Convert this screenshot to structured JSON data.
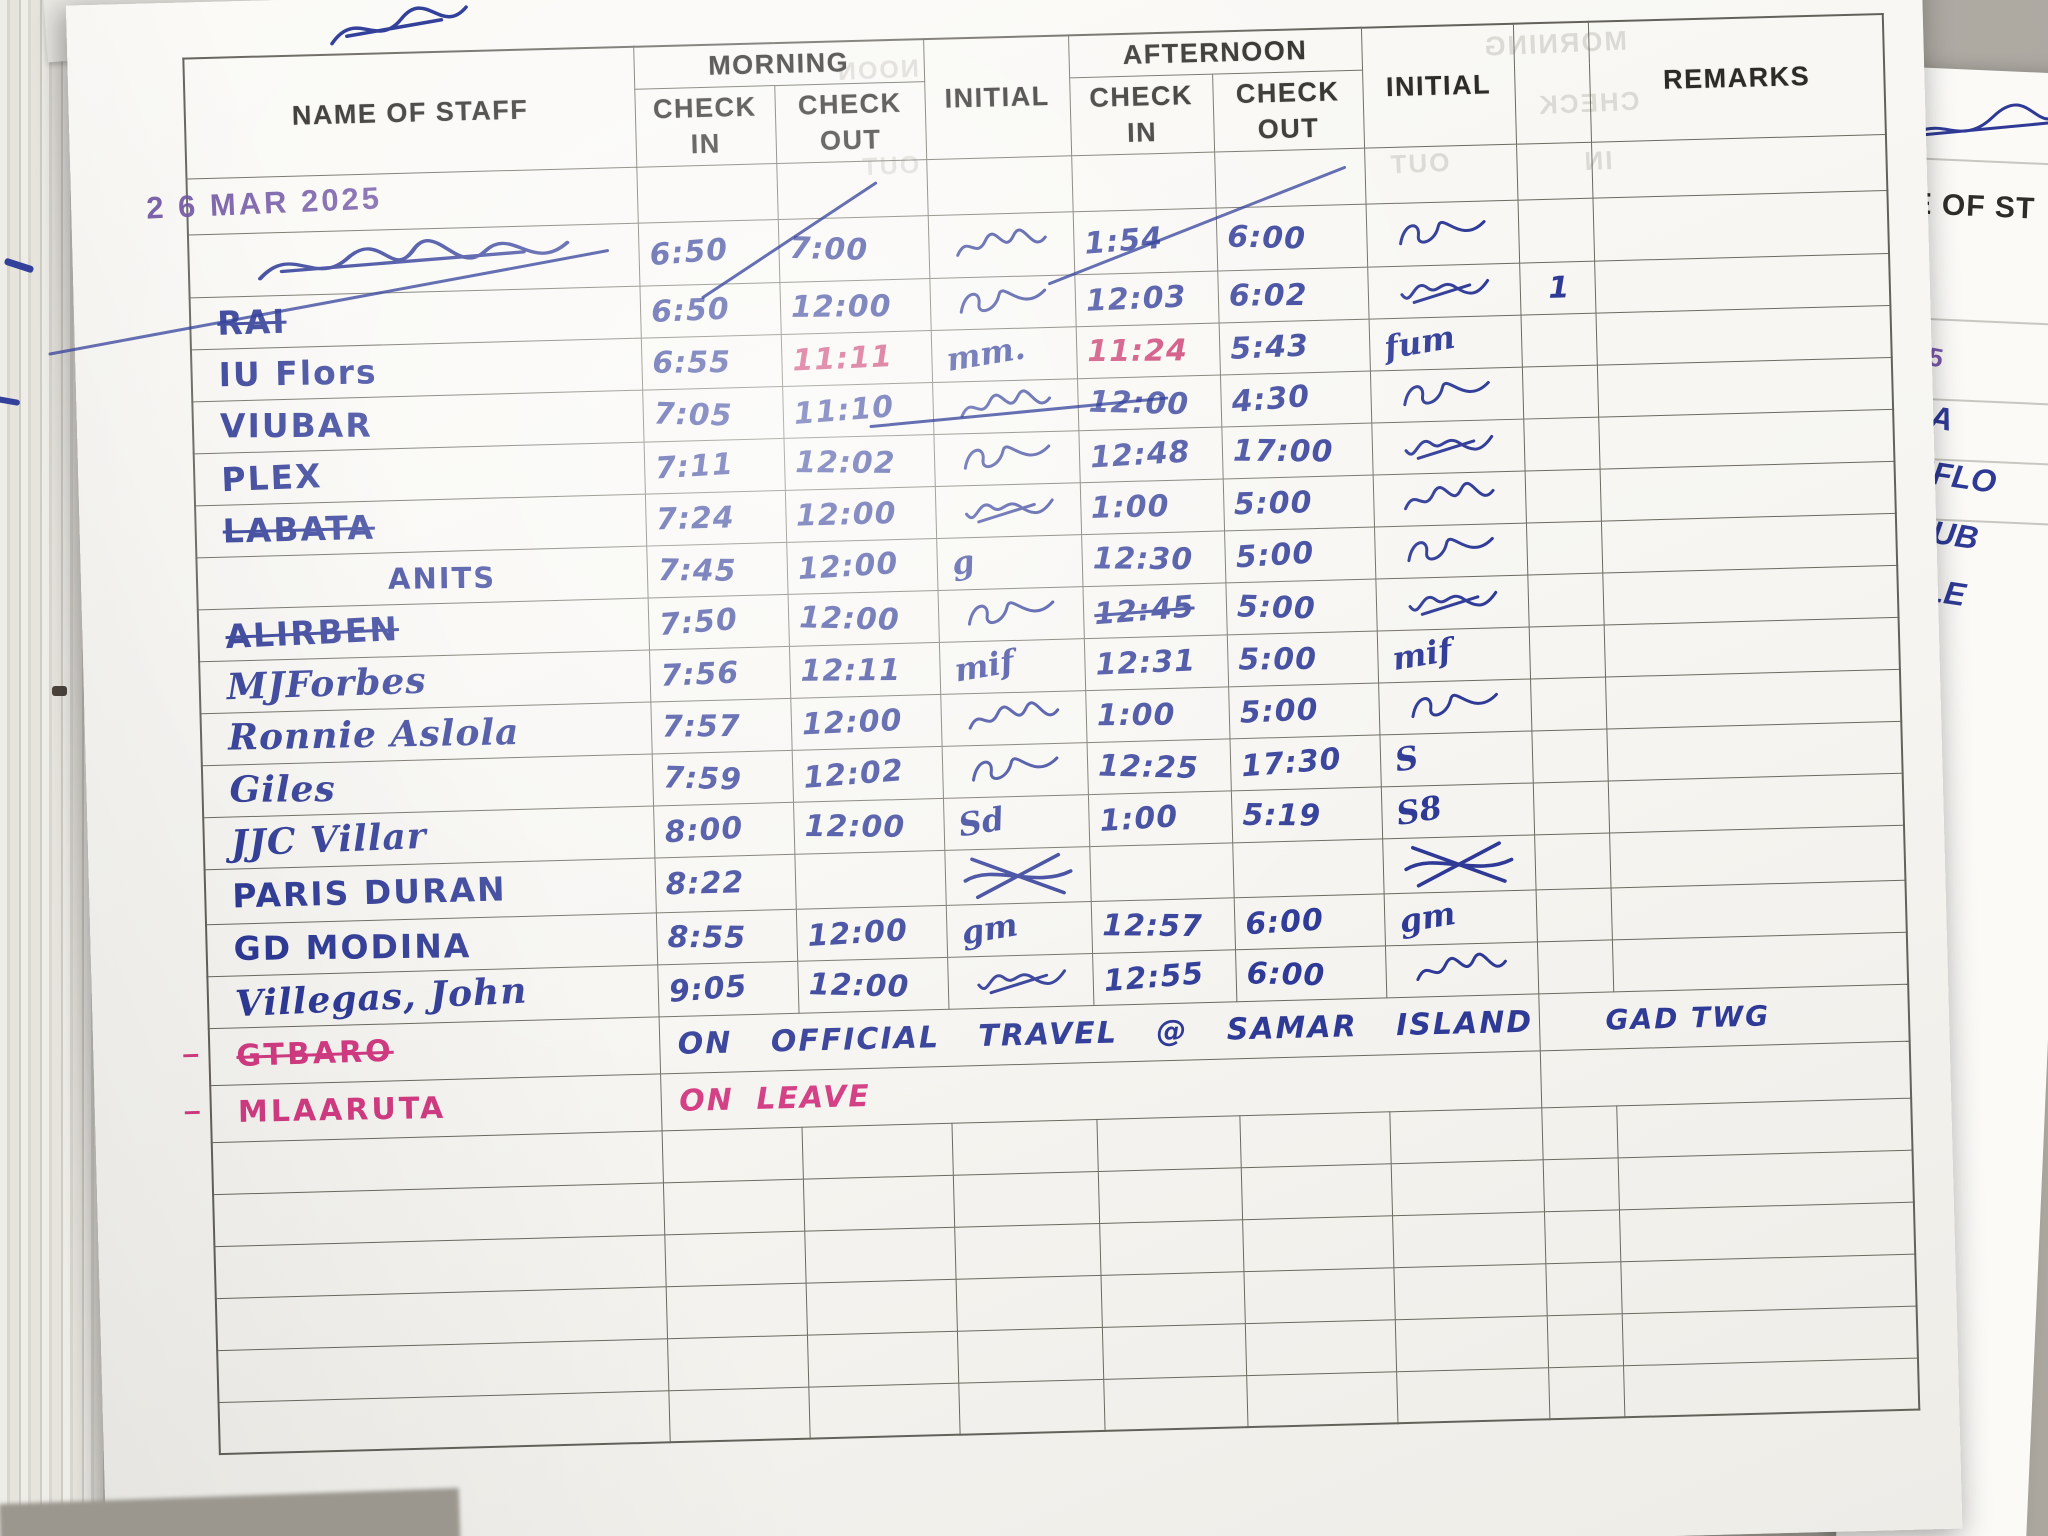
{
  "photo": {
    "date_stamp": "2 6 MAR 2025"
  },
  "ink": {
    "blue": "#2e3a96",
    "red": "#c9356b",
    "pink": "#d23b82",
    "stamp_purple": "#6b4fa1"
  },
  "table": {
    "headers": {
      "name": "NAME OF STAFF",
      "morning": "MORNING",
      "afternoon": "AFTERNOON",
      "check": "CHECK",
      "in": "IN",
      "out": "OUT",
      "initial": "INITIAL",
      "remarks": "REMARKS"
    },
    "rows": [
      {
        "sig_name": true,
        "big": true,
        "m_in": "6:50",
        "m_out": "7:00",
        "init1": "~",
        "a_in": "1:54",
        "a_out": "6:00",
        "init2": "~"
      },
      {
        "name": "RAI",
        "strike": true,
        "m_in": "6:50",
        "m_out": "12:00",
        "init1": "~",
        "a_in": "12:03",
        "a_out": "6:02",
        "init2": "~",
        "narrow": "1"
      },
      {
        "name": "IU Flors",
        "m_in": "6:55",
        "m_out": "11:11",
        "m_out_red": true,
        "init1": "mm.",
        "a_in": "11:24",
        "a_in_red": true,
        "a_out": "5:43",
        "init2": "fum"
      },
      {
        "name": "VIUBAR",
        "m_in": "7:05",
        "m_out": "11:10",
        "init1": "~",
        "a_in": "12:00",
        "a_out": "4:30",
        "init2": "~"
      },
      {
        "name": "PLEX",
        "m_in": "7:11",
        "m_out": "12:02",
        "init1": "~",
        "a_in": "12:48",
        "a_out": "17:00",
        "init2": "~"
      },
      {
        "name": "LABATA",
        "strike": true,
        "m_in": "7:24",
        "m_out": "12:00",
        "init1": "~",
        "a_in": "1:00",
        "a_out": "5:00",
        "init2": "~"
      },
      {
        "name": "ANITS",
        "indent": true,
        "m_in": "7:45",
        "m_out": "12:00",
        "init1": "g",
        "a_in": "12:30",
        "a_out": "5:00",
        "init2": "~"
      },
      {
        "name": "ALIRBEN",
        "strike": true,
        "m_in": "7:50",
        "m_out": "12:00",
        "init1": "~",
        "a_in": "12:45",
        "a_in_crossed": true,
        "a_out": "5:00",
        "init2": "~"
      },
      {
        "name": "MJForbes",
        "script": true,
        "m_in": "7:56",
        "m_out": "12:11",
        "init1": "mif",
        "a_in": "12:31",
        "a_out": "5:00",
        "init2": "mif"
      },
      {
        "name": "Ronnie Aslola",
        "script": true,
        "m_in": "7:57",
        "m_out": "12:00",
        "init1": "~",
        "a_in": "1:00",
        "a_out": "5:00",
        "init2": "~"
      },
      {
        "name": "Giles",
        "script": true,
        "m_in": "7:59",
        "m_out": "12:02",
        "init1": "~",
        "a_in": "12:25",
        "a_out": "17:30",
        "init2": "S"
      },
      {
        "name": "JJC Villar",
        "script": true,
        "m_in": "8:00",
        "m_out": "12:00",
        "init1": "Sd",
        "a_in": "1:00",
        "a_out": "5:19",
        "init2": "S8"
      },
      {
        "name": "PARIS DURAN",
        "m_in": "8:22",
        "init1": "x",
        "init2": "x"
      },
      {
        "name": "GD MODINA",
        "m_in": "8:55",
        "m_out": "12:00",
        "init1": "gm",
        "a_in": "12:57",
        "a_out": "6:00",
        "init2": "gm"
      },
      {
        "name": "Villegas, John",
        "script": true,
        "m_in": "9:05",
        "m_out": "12:00",
        "init1": "~",
        "a_in": "12:55",
        "a_out": "6:00",
        "init2": "~"
      },
      {
        "name": "GTBARO",
        "pink": true,
        "dash": true,
        "strike": true,
        "note": "ON OFFICIAL TRAVEL @ SAMAR ISLAND",
        "remark": "GAD TWG"
      },
      {
        "name": "MLAARUTA",
        "pink": true,
        "dash": true,
        "note": "ON LEAVE",
        "note_pink": true
      },
      {},
      {},
      {},
      {},
      {},
      {}
    ]
  },
  "ghost_bleedthrough": {
    "morning": "MORNING",
    "check": "CHECK",
    "in": "IN",
    "out": "OUT",
    "noon": "NOON"
  },
  "side_page": {
    "header_fragment": "IE OF ST",
    "stamp_fragment": "025",
    "name_fragments": [
      "R A",
      "IUFLO",
      "VIUB",
      "PLE",
      "A"
    ]
  }
}
